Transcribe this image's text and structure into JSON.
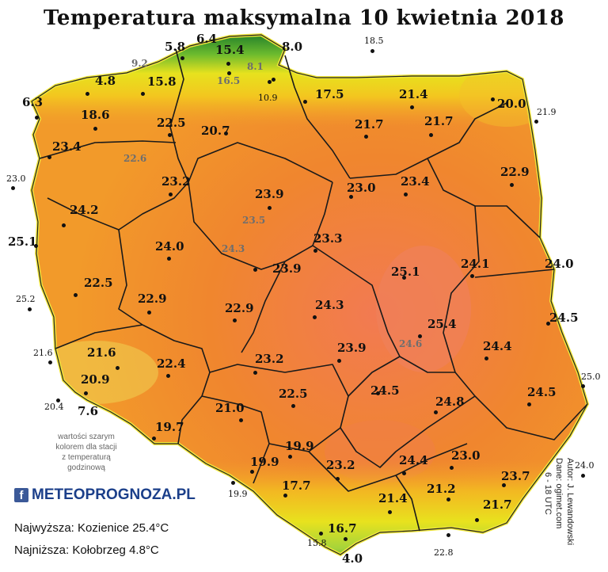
{
  "title": "Temperatura maksymalna 10 kwietnia 2018",
  "note_lines": [
    "wartości szarym",
    "kolorem dla stacji",
    "z temperaturą",
    "godzinową"
  ],
  "logo": {
    "f": "f",
    "text": "METEOPROGNOZA.PL"
  },
  "stats": {
    "max": "Najwyższa: Kozienice 25.4°C",
    "min": "Najniższa: Kołobrzeg 4.8°C"
  },
  "credits": {
    "author": "Autor: J. Lewandowski",
    "data": "Dane: ogimet.com",
    "time": "6 - 18 UTC"
  },
  "colors": {
    "accent_fb": "#3b5998",
    "logo": "#1b3f8a"
  },
  "stations": [
    {
      "v": "6.4",
      "cls": ""
    },
    {
      "v": "5.8",
      "cls": ""
    },
    {
      "v": "15.4",
      "cls": ""
    },
    {
      "v": "8.0",
      "cls": ""
    },
    {
      "v": "18.5",
      "cls": "sm"
    },
    {
      "v": "9.2",
      "cls": "gray"
    },
    {
      "v": "8.1",
      "cls": "gray"
    },
    {
      "v": "16.5",
      "cls": "gray"
    },
    {
      "v": "4.8",
      "cls": ""
    },
    {
      "v": "15.8",
      "cls": ""
    },
    {
      "v": "10.9",
      "cls": "sm"
    },
    {
      "v": "17.5",
      "cls": ""
    },
    {
      "v": "21.4",
      "cls": ""
    },
    {
      "v": "6.3",
      "cls": ""
    },
    {
      "v": "18.6",
      "cls": ""
    },
    {
      "v": "20.0",
      "cls": ""
    },
    {
      "v": "21.9",
      "cls": "sm"
    },
    {
      "v": "22.5",
      "cls": ""
    },
    {
      "v": "21.7",
      "cls": ""
    },
    {
      "v": "21.7",
      "cls": ""
    },
    {
      "v": "20.7",
      "cls": ""
    },
    {
      "v": "23.4",
      "cls": ""
    },
    {
      "v": "22.6",
      "cls": "gray"
    },
    {
      "v": "23.0",
      "cls": "sm"
    },
    {
      "v": "22.9",
      "cls": ""
    },
    {
      "v": "23.2",
      "cls": ""
    },
    {
      "v": "23.9",
      "cls": ""
    },
    {
      "v": "23.0",
      "cls": ""
    },
    {
      "v": "23.4",
      "cls": ""
    },
    {
      "v": "24.2",
      "cls": ""
    },
    {
      "v": "23.5",
      "cls": "gray"
    },
    {
      "v": "25.1",
      "cls": ""
    },
    {
      "v": "24.0",
      "cls": ""
    },
    {
      "v": "23.3",
      "cls": ""
    },
    {
      "v": "24.3",
      "cls": "gray"
    },
    {
      "v": "24.1",
      "cls": ""
    },
    {
      "v": "24.0",
      "cls": ""
    },
    {
      "v": "23.9",
      "cls": ""
    },
    {
      "v": "25.1",
      "cls": ""
    },
    {
      "v": "22.5",
      "cls": ""
    },
    {
      "v": "25.2",
      "cls": "sm"
    },
    {
      "v": "22.9",
      "cls": ""
    },
    {
      "v": "24.3",
      "cls": ""
    },
    {
      "v": "22.9",
      "cls": ""
    },
    {
      "v": "24.5",
      "cls": ""
    },
    {
      "v": "25.4",
      "cls": ""
    },
    {
      "v": "24.6",
      "cls": "gray"
    },
    {
      "v": "21.6",
      "cls": "sm"
    },
    {
      "v": "23.9",
      "cls": ""
    },
    {
      "v": "24.4",
      "cls": ""
    },
    {
      "v": "21.6",
      "cls": ""
    },
    {
      "v": "22.4",
      "cls": ""
    },
    {
      "v": "23.2",
      "cls": ""
    },
    {
      "v": "25.0",
      "cls": "sm"
    },
    {
      "v": "20.9",
      "cls": ""
    },
    {
      "v": "24.5",
      "cls": ""
    },
    {
      "v": "24.5",
      "cls": ""
    },
    {
      "v": "20.4",
      "cls": "sm"
    },
    {
      "v": "22.5",
      "cls": ""
    },
    {
      "v": "7.6",
      "cls": ""
    },
    {
      "v": "24.8",
      "cls": ""
    },
    {
      "v": "21.0",
      "cls": ""
    },
    {
      "v": "19.7",
      "cls": ""
    },
    {
      "v": "19.9",
      "cls": ""
    },
    {
      "v": "23.0",
      "cls": ""
    },
    {
      "v": "24.0",
      "cls": "sm"
    },
    {
      "v": "19.9",
      "cls": ""
    },
    {
      "v": "23.2",
      "cls": ""
    },
    {
      "v": "24.4",
      "cls": ""
    },
    {
      "v": "23.7",
      "cls": ""
    },
    {
      "v": "17.7",
      "cls": ""
    },
    {
      "v": "21.2",
      "cls": ""
    },
    {
      "v": "19.9",
      "cls": "sm"
    },
    {
      "v": "21.4",
      "cls": ""
    },
    {
      "v": "21.7",
      "cls": ""
    },
    {
      "v": "16.7",
      "cls": ""
    },
    {
      "v": "15.8",
      "cls": "sm"
    },
    {
      "v": "4.0",
      "cls": ""
    },
    {
      "v": "22.8",
      "cls": "sm"
    }
  ]
}
